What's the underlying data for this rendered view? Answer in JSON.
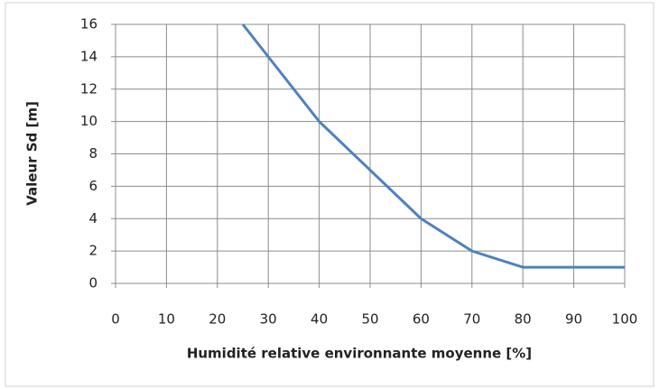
{
  "chart_data": {
    "type": "line",
    "x_label": "Humidité relative environnante moyenne [%]",
    "y_label": "Valeur Sd [m]",
    "x": [
      25,
      30,
      40,
      50,
      60,
      70,
      80,
      90,
      100
    ],
    "series": [
      {
        "name": "Sd",
        "color": "#4f81bd",
        "values": [
          16,
          14,
          10,
          7,
          4,
          2,
          1,
          1,
          1
        ]
      }
    ],
    "xlim": [
      0,
      100
    ],
    "xticks": [
      0,
      10,
      20,
      30,
      40,
      50,
      60,
      70,
      80,
      90,
      100
    ],
    "ylim": [
      0,
      16
    ],
    "yticks": [
      0,
      2,
      4,
      6,
      8,
      10,
      12,
      14,
      16
    ],
    "grid": true
  }
}
